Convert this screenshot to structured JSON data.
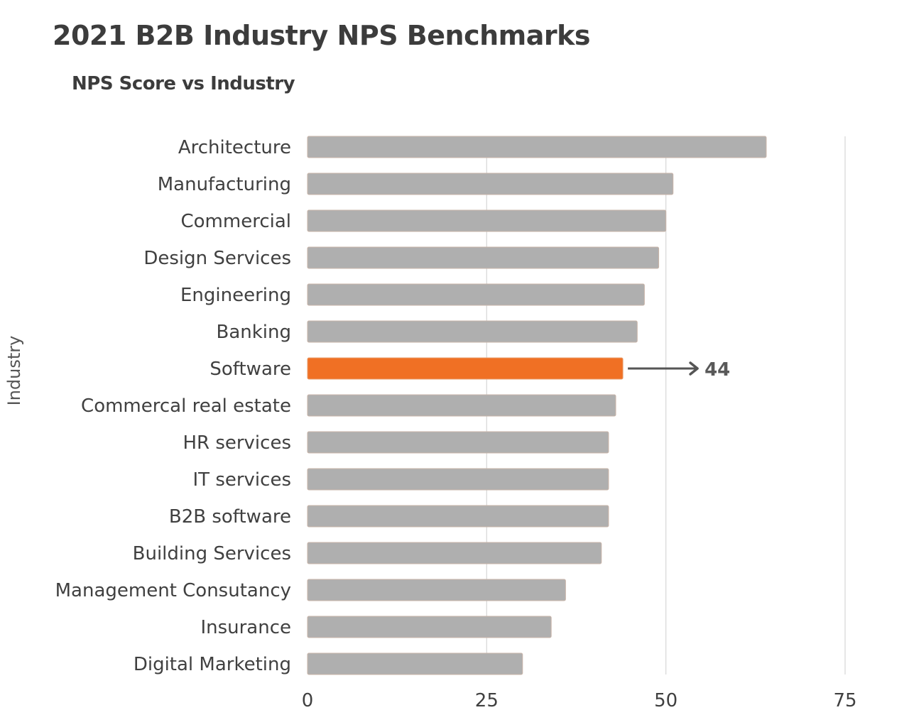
{
  "chart_data": {
    "type": "bar",
    "orientation": "horizontal",
    "title": "2021 B2B Industry NPS Benchmarks",
    "subtitle": "NPS Score vs Industry",
    "xlabel": "",
    "ylabel": "Industry",
    "xlim": [
      0,
      75
    ],
    "xticks": [
      0,
      25,
      50,
      75
    ],
    "grid": true,
    "categories": [
      "Architecture",
      "Manufacturing",
      "Commercial",
      "Design Services",
      "Engineering",
      "Banking",
      "Software",
      "Commercal real estate",
      "HR services",
      "IT services",
      "B2B software",
      "Building Services",
      "Management Consutancy",
      "Insurance",
      "Digital Marketing"
    ],
    "values": [
      64,
      51,
      50,
      49,
      47,
      46,
      44,
      43,
      42,
      42,
      42,
      41,
      36,
      34,
      30
    ],
    "highlight": {
      "category": "Software",
      "label": "44",
      "color": "#F07024"
    },
    "bar_color": "#AFAFAF",
    "annotation": {
      "text": "44",
      "target": "Software",
      "arrow": "right"
    }
  }
}
